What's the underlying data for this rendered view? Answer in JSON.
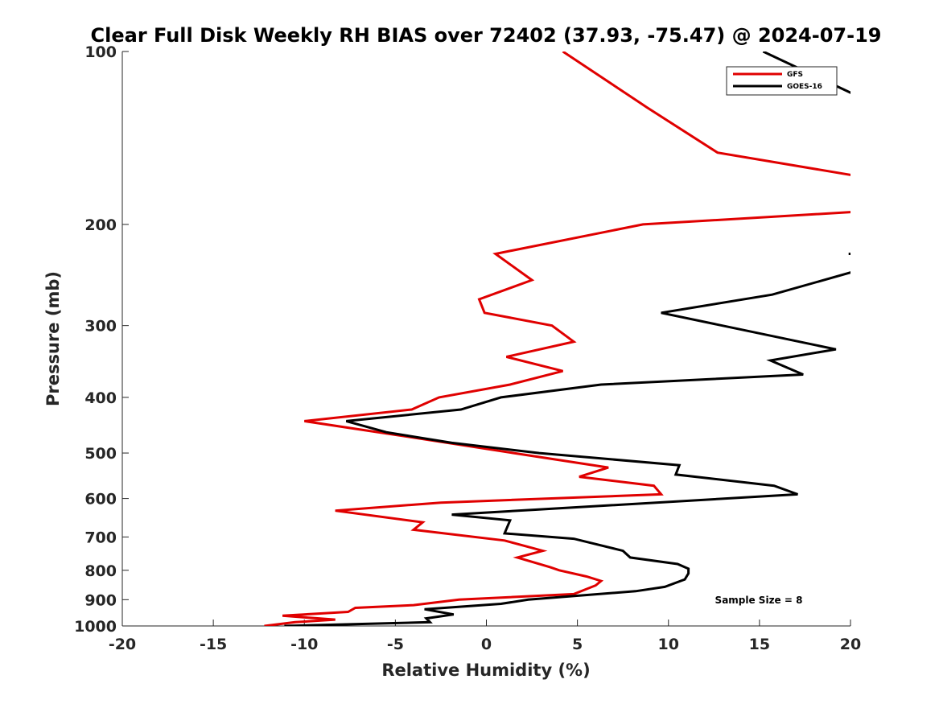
{
  "chart_data": {
    "type": "line",
    "orientation": "vertical-profile",
    "title": "Clear Full Disk Weekly RH BIAS over 72402 (37.93, -75.47) @ 2024-07-19",
    "xlabel": "Relative Humidity (%)",
    "ylabel": "Pressure (mb)",
    "xlim": [
      -20,
      20
    ],
    "ylim": [
      100,
      1000
    ],
    "yscale": "log",
    "x_ticks": [
      "-20",
      "-15",
      "-10",
      "-5",
      "0",
      "5",
      "10",
      "15",
      "20"
    ],
    "y_ticks": [
      "100",
      "200",
      "300",
      "400",
      "500",
      "600",
      "700",
      "800",
      "900",
      "1000"
    ],
    "legend_position": "top-right",
    "annotation": "Sample Size = 8",
    "series": [
      {
        "name": "GFS",
        "color": "#e00000",
        "points": [
          {
            "p": 100,
            "x": 4.2
          },
          {
            "p": 125,
            "x": 8.8
          },
          {
            "p": 150,
            "x": 12.7
          },
          {
            "p": 165,
            "x": 20.5
          },
          {
            "p": 190,
            "x": 20.5
          },
          {
            "p": 200,
            "x": 8.6
          },
          {
            "p": 225,
            "x": 0.5
          },
          {
            "p": 250,
            "x": 2.5
          },
          {
            "p": 270,
            "x": -0.4
          },
          {
            "p": 285,
            "x": -0.1
          },
          {
            "p": 300,
            "x": 3.6
          },
          {
            "p": 320,
            "x": 4.8
          },
          {
            "p": 340,
            "x": 1.1
          },
          {
            "p": 360,
            "x": 4.2
          },
          {
            "p": 380,
            "x": 1.3
          },
          {
            "p": 400,
            "x": -2.6
          },
          {
            "p": 420,
            "x": -4.1
          },
          {
            "p": 440,
            "x": -10.0
          },
          {
            "p": 470,
            "x": -4.0
          },
          {
            "p": 500,
            "x": 1.5
          },
          {
            "p": 530,
            "x": 6.7
          },
          {
            "p": 550,
            "x": 5.1
          },
          {
            "p": 570,
            "x": 9.2
          },
          {
            "p": 590,
            "x": 9.6
          },
          {
            "p": 610,
            "x": -2.5
          },
          {
            "p": 630,
            "x": -8.3
          },
          {
            "p": 660,
            "x": -3.5
          },
          {
            "p": 680,
            "x": -4.0
          },
          {
            "p": 710,
            "x": 1.0
          },
          {
            "p": 740,
            "x": 3.1
          },
          {
            "p": 760,
            "x": 1.7
          },
          {
            "p": 790,
            "x": 3.5
          },
          {
            "p": 800,
            "x": 4.0
          },
          {
            "p": 820,
            "x": 5.5
          },
          {
            "p": 835,
            "x": 6.3
          },
          {
            "p": 850,
            "x": 6.0
          },
          {
            "p": 880,
            "x": 4.8
          },
          {
            "p": 900,
            "x": -1.5
          },
          {
            "p": 920,
            "x": -4.0
          },
          {
            "p": 930,
            "x": -7.2
          },
          {
            "p": 945,
            "x": -7.6
          },
          {
            "p": 960,
            "x": -11.2
          },
          {
            "p": 975,
            "x": -8.3
          },
          {
            "p": 985,
            "x": -10.5
          },
          {
            "p": 1000,
            "x": -12.2
          }
        ]
      },
      {
        "name": "GOES-16",
        "color": "#000000",
        "points": [
          {
            "p": 100,
            "x": 15.2
          },
          {
            "p": 120,
            "x": 20.5
          },
          null,
          {
            "p": 225,
            "x": 19.9
          },
          {
            "p": 225,
            "x": 20.2
          },
          null,
          {
            "p": 240,
            "x": 20.5
          },
          {
            "p": 265,
            "x": 15.7
          },
          {
            "p": 285,
            "x": 9.6
          },
          {
            "p": 330,
            "x": 19.2
          },
          {
            "p": 345,
            "x": 15.6
          },
          {
            "p": 365,
            "x": 17.4
          },
          {
            "p": 380,
            "x": 6.3
          },
          {
            "p": 400,
            "x": 0.8
          },
          {
            "p": 420,
            "x": -1.4
          },
          {
            "p": 440,
            "x": -7.7
          },
          {
            "p": 460,
            "x": -5.5
          },
          {
            "p": 480,
            "x": -1.9
          },
          {
            "p": 500,
            "x": 2.9
          },
          {
            "p": 525,
            "x": 10.6
          },
          {
            "p": 545,
            "x": 10.4
          },
          {
            "p": 570,
            "x": 15.8
          },
          {
            "p": 590,
            "x": 17.1
          },
          {
            "p": 640,
            "x": -1.9
          },
          {
            "p": 655,
            "x": 1.3
          },
          {
            "p": 690,
            "x": 1.0
          },
          {
            "p": 705,
            "x": 4.8
          },
          {
            "p": 740,
            "x": 7.5
          },
          {
            "p": 760,
            "x": 7.9
          },
          {
            "p": 780,
            "x": 10.5
          },
          {
            "p": 795,
            "x": 11.1
          },
          {
            "p": 810,
            "x": 11.1
          },
          {
            "p": 830,
            "x": 10.9
          },
          {
            "p": 855,
            "x": 9.8
          },
          {
            "p": 870,
            "x": 8.2
          },
          {
            "p": 900,
            "x": 2.3
          },
          {
            "p": 915,
            "x": 0.8
          },
          {
            "p": 935,
            "x": -3.4
          },
          {
            "p": 955,
            "x": -1.8
          },
          {
            "p": 970,
            "x": -3.3
          },
          {
            "p": 985,
            "x": -3.1
          },
          {
            "p": 1000,
            "x": -11.1
          }
        ]
      }
    ]
  }
}
